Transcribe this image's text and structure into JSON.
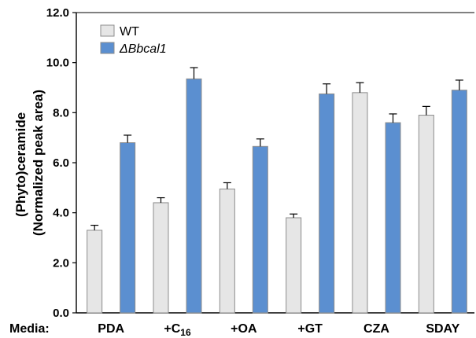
{
  "chart_data": {
    "type": "bar",
    "ylabel_lines": [
      "(Phyto)ceramide",
      "(Normalized peak area)"
    ],
    "xlabel": "Media:",
    "categories": [
      "PDA",
      "+C16",
      "+OA",
      "+GT",
      "CZA",
      "SDAY"
    ],
    "category_display": [
      {
        "main": "PDA",
        "sub": ""
      },
      {
        "main": "+C",
        "sub": "16"
      },
      {
        "main": "+OA",
        "sub": ""
      },
      {
        "main": "+GT",
        "sub": ""
      },
      {
        "main": "CZA",
        "sub": ""
      },
      {
        "main": "SDAY",
        "sub": ""
      }
    ],
    "series": [
      {
        "name": "WT",
        "color": "#e6e6e6",
        "values": [
          3.3,
          4.4,
          4.95,
          3.8,
          8.8,
          7.9
        ],
        "errors": [
          0.2,
          0.2,
          0.25,
          0.15,
          0.4,
          0.35
        ]
      },
      {
        "name": "ΔBbcal1",
        "color": "#5b8fd0",
        "values": [
          6.8,
          9.35,
          6.65,
          8.75,
          7.6,
          8.9
        ],
        "errors": [
          0.3,
          0.45,
          0.3,
          0.4,
          0.35,
          0.4
        ]
      }
    ],
    "ylim": [
      0,
      12
    ],
    "yticks": [
      0,
      2,
      4,
      6,
      8,
      10,
      12
    ],
    "ytick_labels": [
      "0.0",
      "2.0",
      "4.0",
      "6.0",
      "8.0",
      "10.0",
      "12.0"
    ],
    "grid": false,
    "legend_position": "top-left",
    "colors": {
      "wt": "#e6e6e6",
      "mutant": "#5b8fd0",
      "bar_edge": "#8c8c8c",
      "axis": "#000000"
    }
  }
}
